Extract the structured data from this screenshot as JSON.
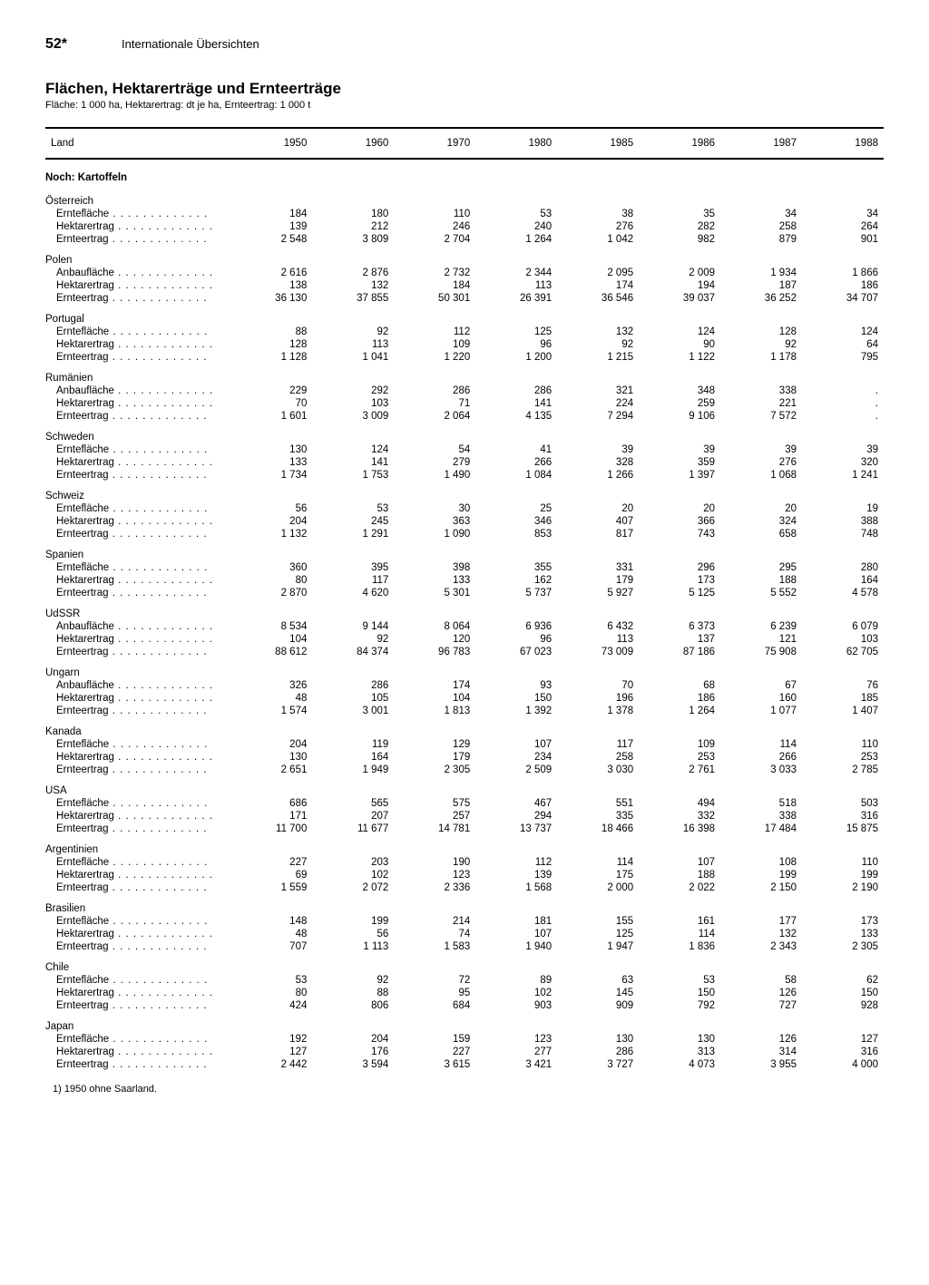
{
  "page_number": "52*",
  "section": "Internationale Übersichten",
  "title": "Flächen, Hektarerträge und Ernteerträge",
  "subtitle": "Fläche: 1 000 ha, Hektarertrag: dt je ha, Ernteertrag: 1 000 t",
  "col_label": "Land",
  "years": [
    "1950",
    "1960",
    "1970",
    "1980",
    "1985",
    "1986",
    "1987",
    "1988"
  ],
  "section_head": "Noch: Kartoffeln",
  "metrics": {
    "ernteflaeche": "Erntefläche",
    "anbauflaeche": "Anbaufläche",
    "hektarertrag": "Hektarertrag",
    "ernteertrag": "Ernteertrag"
  },
  "countries": [
    {
      "name": "Österreich",
      "m1": "ernteflaeche",
      "v": [
        [
          "184",
          "180",
          "110",
          "53",
          "38",
          "35",
          "34",
          "34"
        ],
        [
          "139",
          "212",
          "246",
          "240",
          "276",
          "282",
          "258",
          "264"
        ],
        [
          "2 548",
          "3 809",
          "2 704",
          "1 264",
          "1 042",
          "982",
          "879",
          "901"
        ]
      ]
    },
    {
      "name": "Polen",
      "m1": "anbauflaeche",
      "v": [
        [
          "2 616",
          "2 876",
          "2 732",
          "2 344",
          "2 095",
          "2 009",
          "1 934",
          "1 866"
        ],
        [
          "138",
          "132",
          "184",
          "113",
          "174",
          "194",
          "187",
          "186"
        ],
        [
          "36 130",
          "37 855",
          "50 301",
          "26 391",
          "36 546",
          "39 037",
          "36 252",
          "34 707"
        ]
      ]
    },
    {
      "name": "Portugal",
      "m1": "ernteflaeche",
      "v": [
        [
          "88",
          "92",
          "112",
          "125",
          "132",
          "124",
          "128",
          "124"
        ],
        [
          "128",
          "113",
          "109",
          "96",
          "92",
          "90",
          "92",
          "64"
        ],
        [
          "1 128",
          "1 041",
          "1 220",
          "1 200",
          "1 215",
          "1 122",
          "1 178",
          "795"
        ]
      ]
    },
    {
      "name": "Rumänien",
      "m1": "anbauflaeche",
      "v": [
        [
          "229",
          "292",
          "286",
          "286",
          "321",
          "348",
          "338",
          "."
        ],
        [
          "70",
          "103",
          "71",
          "141",
          "224",
          "259",
          "221",
          "."
        ],
        [
          "1 601",
          "3 009",
          "2 064",
          "4 135",
          "7 294",
          "9 106",
          "7 572",
          "."
        ]
      ]
    },
    {
      "name": "Schweden",
      "m1": "ernteflaeche",
      "v": [
        [
          "130",
          "124",
          "54",
          "41",
          "39",
          "39",
          "39",
          "39"
        ],
        [
          "133",
          "141",
          "279",
          "266",
          "328",
          "359",
          "276",
          "320"
        ],
        [
          "1 734",
          "1 753",
          "1 490",
          "1 084",
          "1 266",
          "1 397",
          "1 068",
          "1 241"
        ]
      ]
    },
    {
      "name": "Schweiz",
      "m1": "ernteflaeche",
      "v": [
        [
          "56",
          "53",
          "30",
          "25",
          "20",
          "20",
          "20",
          "19"
        ],
        [
          "204",
          "245",
          "363",
          "346",
          "407",
          "366",
          "324",
          "388"
        ],
        [
          "1 132",
          "1 291",
          "1 090",
          "853",
          "817",
          "743",
          "658",
          "748"
        ]
      ]
    },
    {
      "name": "Spanien",
      "m1": "ernteflaeche",
      "v": [
        [
          "360",
          "395",
          "398",
          "355",
          "331",
          "296",
          "295",
          "280"
        ],
        [
          "80",
          "117",
          "133",
          "162",
          "179",
          "173",
          "188",
          "164"
        ],
        [
          "2 870",
          "4 620",
          "5 301",
          "5 737",
          "5 927",
          "5 125",
          "5 552",
          "4 578"
        ]
      ]
    },
    {
      "name": "UdSSR",
      "m1": "anbauflaeche",
      "v": [
        [
          "8 534",
          "9 144",
          "8 064",
          "6 936",
          "6 432",
          "6 373",
          "6 239",
          "6 079"
        ],
        [
          "104",
          "92",
          "120",
          "96",
          "113",
          "137",
          "121",
          "103"
        ],
        [
          "88 612",
          "84 374",
          "96 783",
          "67 023",
          "73 009",
          "87 186",
          "75 908",
          "62 705"
        ]
      ]
    },
    {
      "name": "Ungarn",
      "m1": "anbauflaeche",
      "v": [
        [
          "326",
          "286",
          "174",
          "93",
          "70",
          "68",
          "67",
          "76"
        ],
        [
          "48",
          "105",
          "104",
          "150",
          "196",
          "186",
          "160",
          "185"
        ],
        [
          "1 574",
          "3 001",
          "1 813",
          "1 392",
          "1 378",
          "1 264",
          "1 077",
          "1 407"
        ]
      ]
    },
    {
      "name": "Kanada",
      "m1": "ernteflaeche",
      "v": [
        [
          "204",
          "119",
          "129",
          "107",
          "117",
          "109",
          "114",
          "110"
        ],
        [
          "130",
          "164",
          "179",
          "234",
          "258",
          "253",
          "266",
          "253"
        ],
        [
          "2 651",
          "1 949",
          "2 305",
          "2 509",
          "3 030",
          "2 761",
          "3 033",
          "2 785"
        ]
      ]
    },
    {
      "name": "USA",
      "m1": "ernteflaeche",
      "v": [
        [
          "686",
          "565",
          "575",
          "467",
          "551",
          "494",
          "518",
          "503"
        ],
        [
          "171",
          "207",
          "257",
          "294",
          "335",
          "332",
          "338",
          "316"
        ],
        [
          "11 700",
          "11 677",
          "14 781",
          "13 737",
          "18 466",
          "16 398",
          "17 484",
          "15 875"
        ]
      ]
    },
    {
      "name": "Argentinien",
      "m1": "ernteflaeche",
      "v": [
        [
          "227",
          "203",
          "190",
          "112",
          "114",
          "107",
          "108",
          "110"
        ],
        [
          "69",
          "102",
          "123",
          "139",
          "175",
          "188",
          "199",
          "199"
        ],
        [
          "1 559",
          "2 072",
          "2 336",
          "1 568",
          "2 000",
          "2 022",
          "2 150",
          "2 190"
        ]
      ]
    },
    {
      "name": "Brasilien",
      "m1": "ernteflaeche",
      "v": [
        [
          "148",
          "199",
          "214",
          "181",
          "155",
          "161",
          "177",
          "173"
        ],
        [
          "48",
          "56",
          "74",
          "107",
          "125",
          "114",
          "132",
          "133"
        ],
        [
          "707",
          "1 113",
          "1 583",
          "1 940",
          "1 947",
          "1 836",
          "2 343",
          "2 305"
        ]
      ]
    },
    {
      "name": "Chile",
      "m1": "ernteflaeche",
      "v": [
        [
          "53",
          "92",
          "72",
          "89",
          "63",
          "53",
          "58",
          "62"
        ],
        [
          "80",
          "88",
          "95",
          "102",
          "145",
          "150",
          "126",
          "150"
        ],
        [
          "424",
          "806",
          "684",
          "903",
          "909",
          "792",
          "727",
          "928"
        ]
      ]
    },
    {
      "name": "Japan",
      "m1": "ernteflaeche",
      "v": [
        [
          "192",
          "204",
          "159",
          "123",
          "130",
          "130",
          "126",
          "127"
        ],
        [
          "127",
          "176",
          "227",
          "277",
          "286",
          "313",
          "314",
          "316"
        ],
        [
          "2 442",
          "3 594",
          "3 615",
          "3 421",
          "3 727",
          "4 073",
          "3 955",
          "4 000"
        ]
      ]
    }
  ],
  "footnote": "1) 1950 ohne Saarland."
}
